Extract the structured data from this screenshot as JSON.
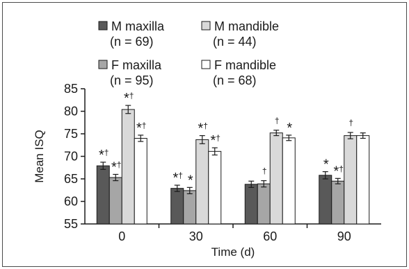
{
  "chart_data": {
    "type": "bar",
    "xlabel": "Time (d)",
    "ylabel": "Mean ISQ",
    "ylim": [
      55,
      85
    ],
    "yticks": [
      55,
      60,
      65,
      70,
      75,
      80,
      85
    ],
    "categories": [
      "0",
      "30",
      "60",
      "90"
    ],
    "series": [
      {
        "name": "M maxilla",
        "n_label": "(n = 69)",
        "color": "#595959",
        "values": [
          67.9,
          62.9,
          63.8,
          65.8
        ],
        "errors": [
          0.8,
          0.7,
          0.7,
          0.8
        ],
        "annotations": [
          "*†",
          "*†",
          "",
          "*"
        ]
      },
      {
        "name": "F maxilla",
        "n_label": "(n = 95)",
        "color": "#a6a6a6",
        "values": [
          65.3,
          62.4,
          63.9,
          64.5
        ],
        "errors": [
          0.7,
          0.7,
          0.7,
          0.6
        ],
        "annotations": [
          "*†",
          "*",
          "†",
          "*†"
        ]
      },
      {
        "name": "M mandible",
        "n_label": "(n = 44)",
        "color": "#d9d9d9",
        "values": [
          80.4,
          73.7,
          75.2,
          74.6
        ],
        "errors": [
          0.9,
          0.9,
          0.6,
          0.7
        ],
        "annotations": [
          "*†",
          "*†",
          "†",
          "†"
        ]
      },
      {
        "name": "F mandible",
        "n_label": "(n = 68)",
        "color": "#ffffff",
        "values": [
          74.0,
          71.1,
          74.1,
          74.6
        ],
        "errors": [
          0.7,
          0.8,
          0.6,
          0.6
        ],
        "annotations": [
          "*†",
          "*†",
          "*",
          ""
        ]
      }
    ],
    "legend_order": [
      0,
      2,
      1,
      3
    ],
    "legend_position": "top",
    "grid": false
  }
}
